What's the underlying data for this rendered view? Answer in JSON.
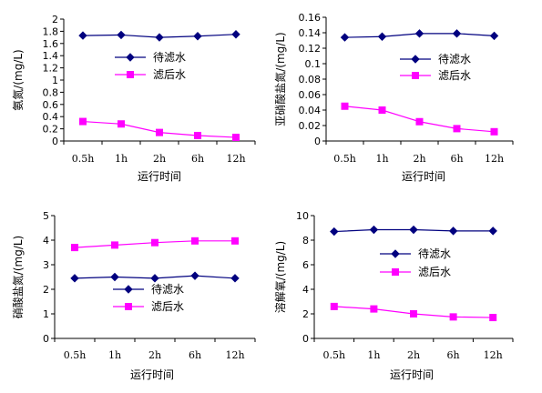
{
  "chart_data": [
    {
      "type": "line",
      "ylabel": "氨氮/(mg/L)",
      "xlabel": "运行时间",
      "categories": [
        "0.5h",
        "1h",
        "2h",
        "6h",
        "12h"
      ],
      "ylim": [
        0,
        2
      ],
      "yticks": [
        "0",
        "0.2",
        "0.4",
        "0.6",
        "0.8",
        "1",
        "1.2",
        "1.4",
        "1.6",
        "1.8",
        "2"
      ],
      "legend_position": "center-right",
      "series": [
        {
          "name": "待滤水",
          "color": "#00007f",
          "marker": "diamond",
          "values": [
            1.73,
            1.74,
            1.7,
            1.72,
            1.75
          ]
        },
        {
          "name": "滤后水",
          "color": "#ff00ff",
          "marker": "square",
          "values": [
            0.32,
            0.28,
            0.14,
            0.09,
            0.06
          ]
        }
      ]
    },
    {
      "type": "line",
      "ylabel": "亚硝酸盐氮/(mg/L)",
      "xlabel": "运行时间",
      "categories": [
        "0.5h",
        "1h",
        "2h",
        "6h",
        "12h"
      ],
      "ylim": [
        0,
        0.16
      ],
      "yticks": [
        "0",
        "0.02",
        "0.04",
        "0.06",
        "0.08",
        "0.1",
        "0.12",
        "0.14",
        "0.16"
      ],
      "legend_position": "top-right",
      "series": [
        {
          "name": "待滤水",
          "color": "#00007f",
          "marker": "diamond",
          "values": [
            0.134,
            0.135,
            0.139,
            0.139,
            0.136
          ]
        },
        {
          "name": "滤后水",
          "color": "#ff00ff",
          "marker": "square",
          "values": [
            0.045,
            0.04,
            0.025,
            0.016,
            0.012
          ]
        }
      ]
    },
    {
      "type": "line",
      "ylabel": "硝酸盐氮/(mg/L)",
      "xlabel": "运行时间",
      "categories": [
        "0.5h",
        "1h",
        "2h",
        "6h",
        "12h"
      ],
      "ylim": [
        0,
        5
      ],
      "yticks": [
        "0",
        "1",
        "2",
        "3",
        "4",
        "5"
      ],
      "legend_position": "bottom-right",
      "series": [
        {
          "name": "待滤水",
          "color": "#00007f",
          "marker": "diamond",
          "values": [
            2.45,
            2.5,
            2.45,
            2.55,
            2.45
          ]
        },
        {
          "name": "滤后水",
          "color": "#ff00ff",
          "marker": "square",
          "values": [
            3.7,
            3.8,
            3.9,
            3.97,
            3.97
          ]
        }
      ]
    },
    {
      "type": "line",
      "ylabel": "溶解氧/(mg/L)",
      "xlabel": "运行时间",
      "categories": [
        "0.5h",
        "1h",
        "2h",
        "6h",
        "12h"
      ],
      "ylim": [
        0,
        10
      ],
      "yticks": [
        "0",
        "2",
        "4",
        "6",
        "8",
        "10"
      ],
      "legend_position": "center-right",
      "series": [
        {
          "name": "待滤水",
          "color": "#00007f",
          "marker": "diamond",
          "values": [
            8.7,
            8.85,
            8.85,
            8.75,
            8.75
          ]
        },
        {
          "name": "滤后水",
          "color": "#ff00ff",
          "marker": "square",
          "values": [
            2.6,
            2.4,
            2.0,
            1.75,
            1.7
          ]
        }
      ]
    }
  ]
}
